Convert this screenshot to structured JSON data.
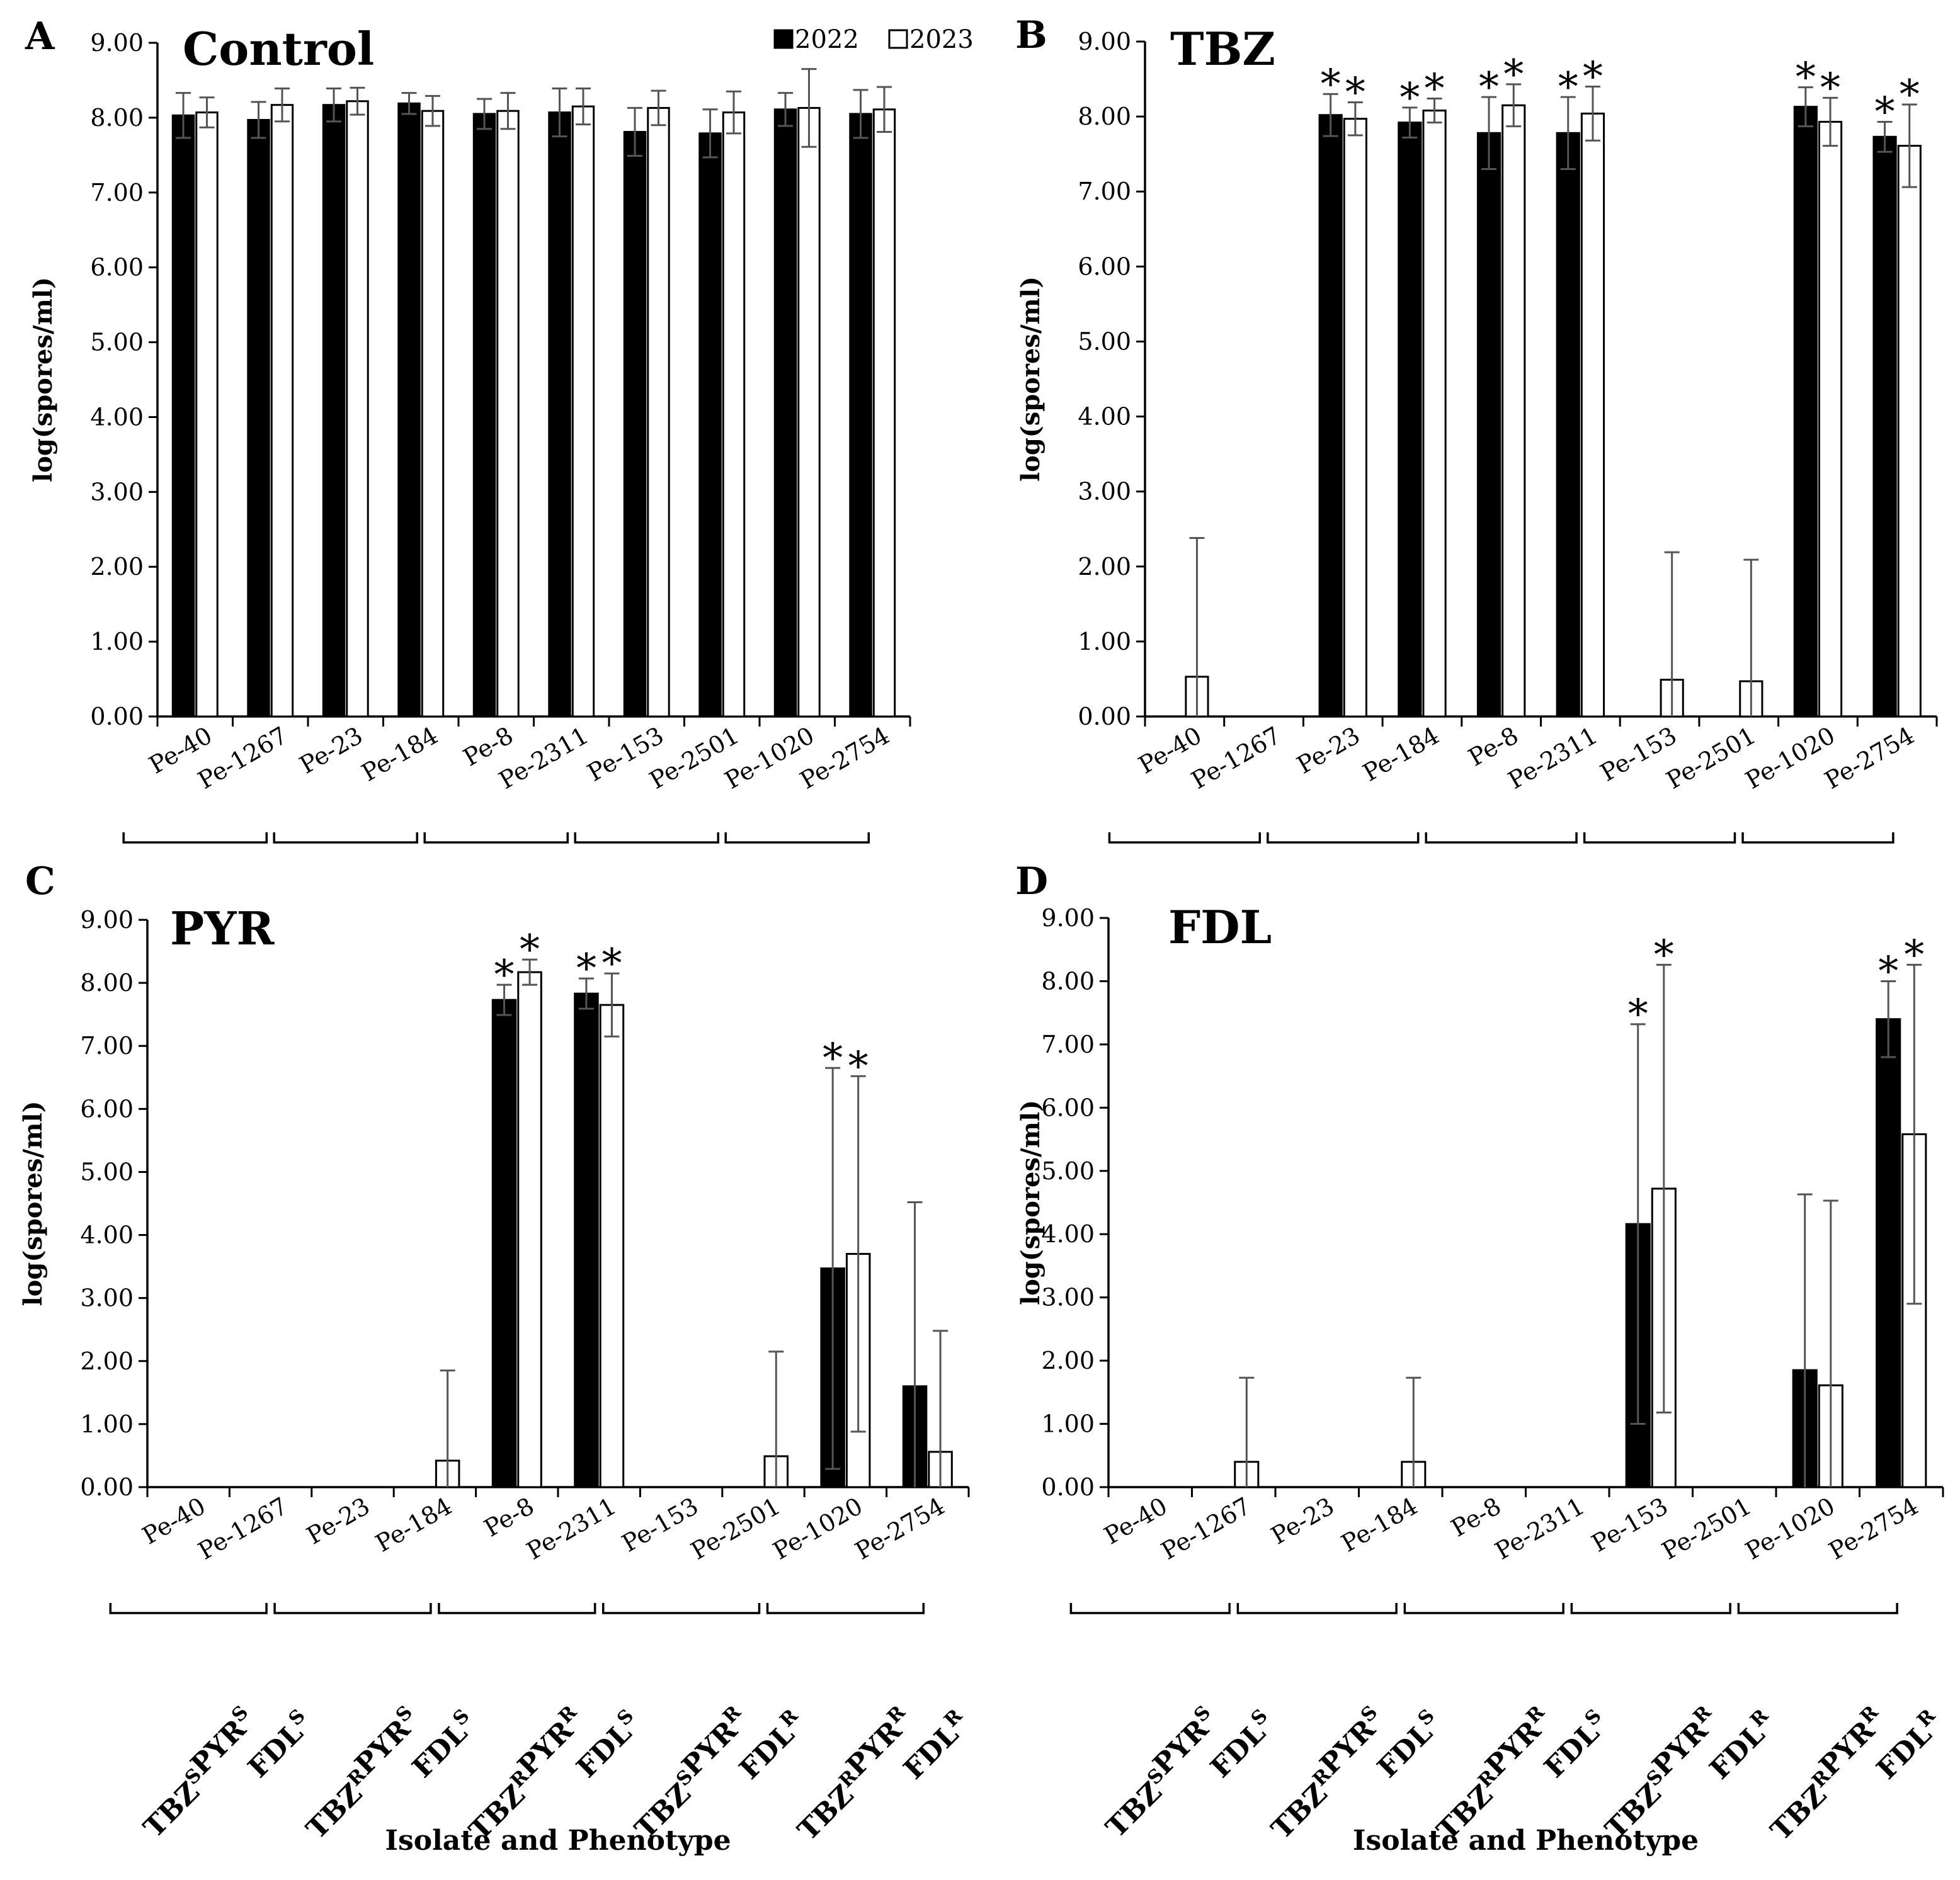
{
  "figure": {
    "isolates": [
      "Pe-40",
      "Pe-1267",
      "Pe-23",
      "Pe-184",
      "Pe-8",
      "Pe-2311",
      "Pe-153",
      "Pe-2501",
      "Pe-1020",
      "Pe-2754"
    ],
    "phenotype_groups": [
      {
        "line1": [
          [
            "TBZ",
            "S"
          ],
          [
            "PYR",
            "S"
          ]
        ],
        "line2": [
          [
            "FDL",
            "S"
          ]
        ]
      },
      {
        "line1": [
          [
            "TBZ",
            "R"
          ],
          [
            "PYR",
            "S"
          ]
        ],
        "line2": [
          [
            "FDL",
            "S"
          ]
        ]
      },
      {
        "line1": [
          [
            "TBZ",
            "R"
          ],
          [
            "PYR",
            "R"
          ]
        ],
        "line2": [
          [
            "FDL",
            "S"
          ]
        ]
      },
      {
        "line1": [
          [
            "TBZ",
            "S"
          ],
          [
            "PYR",
            "R"
          ]
        ],
        "line2": [
          [
            "FDL",
            "R"
          ]
        ]
      },
      {
        "line1": [
          [
            "TBZ",
            "R"
          ],
          [
            "PYR",
            "R"
          ]
        ],
        "line2": [
          [
            "FDL",
            "R"
          ]
        ]
      }
    ],
    "legend": {
      "series": [
        {
          "name": "2022",
          "color": "#000000"
        },
        {
          "name": "2023",
          "color": "#ffffff"
        }
      ]
    },
    "colors": {
      "bar2022": "#000000",
      "bar2023": "#ffffff",
      "error": "#555555",
      "axis": "#000000"
    }
  },
  "chart_data": [
    {
      "panel": "A",
      "title": "Control",
      "type": "bar",
      "ylabel": "log(spores/ml)",
      "xlabel": "",
      "ylim": [
        0,
        9
      ],
      "yticks": [
        "0.00",
        "1.00",
        "2.00",
        "3.00",
        "4.00",
        "5.00",
        "6.00",
        "7.00",
        "8.00",
        "9.00"
      ],
      "categories": [
        "Pe-40",
        "Pe-1267",
        "Pe-23",
        "Pe-184",
        "Pe-8",
        "Pe-2311",
        "Pe-153",
        "Pe-2501",
        "Pe-1020",
        "Pe-2754"
      ],
      "series": [
        {
          "name": "2022",
          "values": [
            8.03,
            7.97,
            8.17,
            8.19,
            8.05,
            8.07,
            7.81,
            7.79,
            8.11,
            8.05
          ],
          "errors": [
            0.3,
            0.24,
            0.22,
            0.14,
            0.2,
            0.32,
            0.32,
            0.32,
            0.22,
            0.32
          ]
        },
        {
          "name": "2023",
          "values": [
            8.07,
            8.17,
            8.22,
            8.09,
            8.09,
            8.15,
            8.13,
            8.07,
            8.13,
            8.11
          ],
          "errors": [
            0.2,
            0.22,
            0.18,
            0.2,
            0.24,
            0.24,
            0.23,
            0.28,
            0.52,
            0.3
          ]
        }
      ],
      "annotations": []
    },
    {
      "panel": "B",
      "title": "TBZ",
      "type": "bar",
      "ylabel": "log(spores/ml)",
      "xlabel": "",
      "ylim": [
        0,
        9
      ],
      "yticks": [
        "0.00",
        "1.00",
        "2.00",
        "3.00",
        "4.00",
        "5.00",
        "6.00",
        "7.00",
        "8.00",
        "9.00"
      ],
      "categories": [
        "Pe-40",
        "Pe-1267",
        "Pe-23",
        "Pe-184",
        "Pe-8",
        "Pe-2311",
        "Pe-153",
        "Pe-2501",
        "Pe-1020",
        "Pe-2754"
      ],
      "series": [
        {
          "name": "2022",
          "values": [
            0,
            0,
            8.02,
            7.92,
            7.78,
            7.78,
            0,
            0,
            8.13,
            7.73
          ],
          "errors": [
            0,
            0,
            0.28,
            0.2,
            0.48,
            0.48,
            0,
            0,
            0.26,
            0.2
          ]
        },
        {
          "name": "2023",
          "values": [
            0.53,
            0,
            7.97,
            8.08,
            8.15,
            8.04,
            0.49,
            0.47,
            7.93,
            7.61
          ],
          "errors": [
            1.85,
            0,
            0.22,
            0.16,
            0.28,
            0.36,
            1.7,
            1.62,
            0.32,
            0.55
          ]
        }
      ],
      "annotations": [
        {
          "category": "Pe-23",
          "series": "2022",
          "text": "*"
        },
        {
          "category": "Pe-23",
          "series": "2023",
          "text": "*"
        },
        {
          "category": "Pe-184",
          "series": "2022",
          "text": "*"
        },
        {
          "category": "Pe-184",
          "series": "2023",
          "text": "*"
        },
        {
          "category": "Pe-8",
          "series": "2022",
          "text": "*"
        },
        {
          "category": "Pe-8",
          "series": "2023",
          "text": "*"
        },
        {
          "category": "Pe-2311",
          "series": "2022",
          "text": "*"
        },
        {
          "category": "Pe-2311",
          "series": "2023",
          "text": "*"
        },
        {
          "category": "Pe-1020",
          "series": "2022",
          "text": "*"
        },
        {
          "category": "Pe-1020",
          "series": "2023",
          "text": "*"
        },
        {
          "category": "Pe-2754",
          "series": "2022",
          "text": "*"
        },
        {
          "category": "Pe-2754",
          "series": "2023",
          "text": "*"
        }
      ]
    },
    {
      "panel": "C",
      "title": "PYR",
      "type": "bar",
      "ylabel": "log(spores/ml)",
      "xlabel": "Isolate and Phenotype",
      "ylim": [
        0,
        9
      ],
      "yticks": [
        "0.00",
        "1.00",
        "2.00",
        "3.00",
        "4.00",
        "5.00",
        "6.00",
        "7.00",
        "8.00",
        "9.00"
      ],
      "categories": [
        "Pe-40",
        "Pe-1267",
        "Pe-23",
        "Pe-184",
        "Pe-8",
        "Pe-2311",
        "Pe-153",
        "Pe-2501",
        "Pe-1020",
        "Pe-2754"
      ],
      "series": [
        {
          "name": "2022",
          "values": [
            0,
            0,
            0,
            0,
            7.73,
            7.83,
            0,
            0,
            3.47,
            1.6
          ],
          "errors": [
            0,
            0,
            0,
            0,
            0.24,
            0.24,
            0,
            0,
            3.18,
            2.92
          ]
        },
        {
          "name": "2023",
          "values": [
            0,
            0,
            0,
            0.42,
            8.17,
            7.65,
            0,
            0.49,
            3.7,
            0.56
          ],
          "errors": [
            0,
            0,
            0,
            1.43,
            0.2,
            0.5,
            0,
            1.66,
            2.82,
            1.92
          ]
        }
      ],
      "annotations": [
        {
          "category": "Pe-8",
          "series": "2022",
          "text": "*"
        },
        {
          "category": "Pe-8",
          "series": "2023",
          "text": "*"
        },
        {
          "category": "Pe-2311",
          "series": "2022",
          "text": "*"
        },
        {
          "category": "Pe-2311",
          "series": "2023",
          "text": "*"
        },
        {
          "category": "Pe-1020",
          "series": "2022",
          "text": "*"
        },
        {
          "category": "Pe-1020",
          "series": "2023",
          "text": "*"
        }
      ]
    },
    {
      "panel": "D",
      "title": "FDL",
      "type": "bar",
      "ylabel": "log(spores/ml)",
      "xlabel": "Isolate and  Phenotype",
      "ylim": [
        0,
        9
      ],
      "yticks": [
        "0.00",
        "1.00",
        "2.00",
        "3.00",
        "4.00",
        "5.00",
        "6.00",
        "7.00",
        "8.00",
        "9.00"
      ],
      "categories": [
        "Pe-40",
        "Pe-1267",
        "Pe-23",
        "Pe-184",
        "Pe-8",
        "Pe-2311",
        "Pe-153",
        "Pe-2501",
        "Pe-1020",
        "Pe-2754"
      ],
      "series": [
        {
          "name": "2022",
          "values": [
            0,
            0,
            0,
            0,
            0,
            0,
            4.16,
            0,
            1.85,
            7.4
          ],
          "errors": [
            0,
            0,
            0,
            0,
            0,
            0,
            3.16,
            0,
            2.78,
            0.6
          ]
        },
        {
          "name": "2023",
          "values": [
            0,
            0.4,
            0,
            0.4,
            0,
            0,
            4.72,
            0,
            1.61,
            5.58
          ],
          "errors": [
            0,
            1.33,
            0,
            1.33,
            0,
            0,
            3.54,
            0,
            2.92,
            2.68
          ]
        }
      ],
      "annotations": [
        {
          "category": "Pe-153",
          "series": "2022",
          "text": "*"
        },
        {
          "category": "Pe-153",
          "series": "2023",
          "text": "*"
        },
        {
          "category": "Pe-2754",
          "series": "2022",
          "text": "*"
        },
        {
          "category": "Pe-2754",
          "series": "2023",
          "text": "*"
        }
      ]
    }
  ]
}
